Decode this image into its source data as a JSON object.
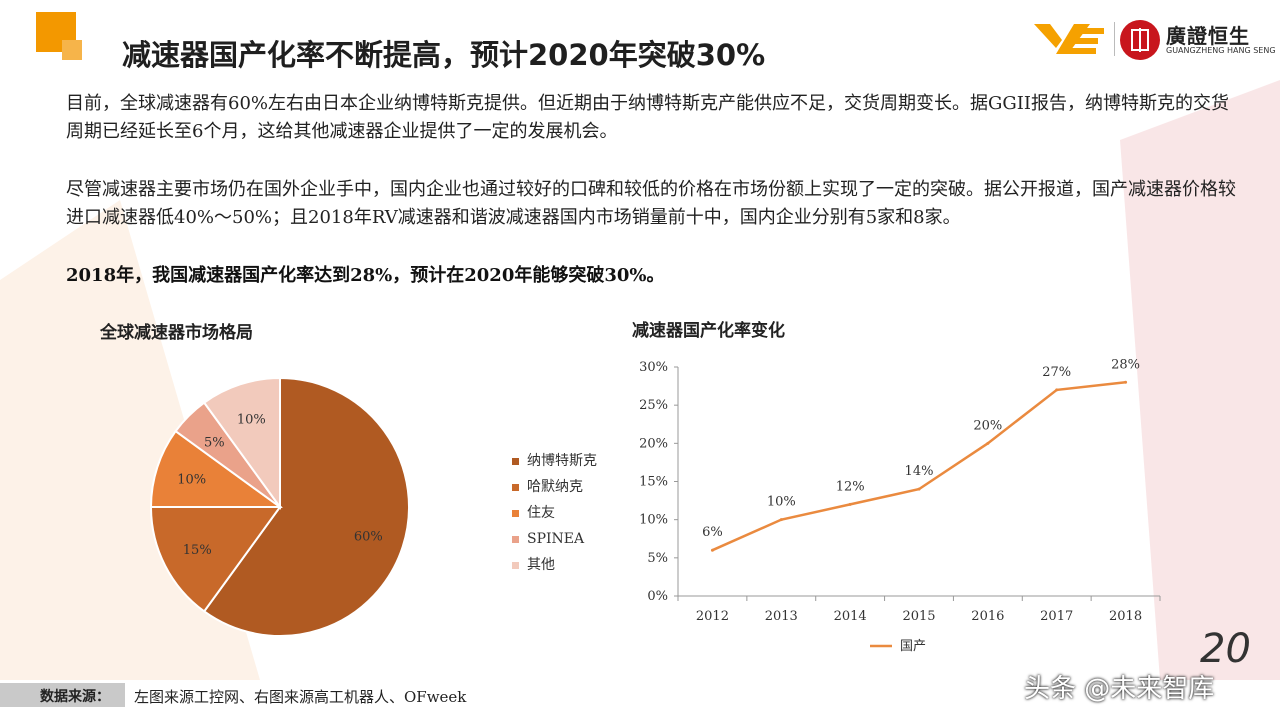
{
  "header": {
    "title": "减速器国产化率不断提高，预计2020年突破30%",
    "brand_cn": "廣證恒生",
    "brand_en": "GUANGZHENG HANG SENG"
  },
  "body": {
    "para1": "目前，全球减速器有60%左右由日本企业纳博特斯克提供。但近期由于纳博特斯克产能供应不足，交货周期变长。据GGII报告，纳博特斯克的交货周期已经延长至6个月，这给其他减速器企业提供了一定的发展机会。",
    "para2": "尽管减速器主要市场仍在国外企业手中，国内企业也通过较好的口碑和较低的价格在市场份额上实现了一定的突破。据公开报道，国产减速器价格较进口减速器低40%～50%；且2018年RV减速器和谐波减速器国内市场销量前十中，国内企业分别有5家和8家。",
    "para3": "2018年，我国减速器国产化率达到28%，预计在2020年能够突破30%。"
  },
  "chart_data": [
    {
      "type": "pie",
      "title": "全球减速器市场格局",
      "slices": [
        {
          "name": "纳博特斯克",
          "value": 60,
          "label": "60%",
          "color": "#b05a22"
        },
        {
          "name": "哈默纳克",
          "value": 15,
          "label": "15%",
          "color": "#c8692a"
        },
        {
          "name": "住友",
          "value": 10,
          "label": "10%",
          "color": "#e98138"
        },
        {
          "name": "SPINEA",
          "value": 5,
          "label": "5%",
          "color": "#eaa28a"
        },
        {
          "name": "其他",
          "value": 10,
          "label": "10%",
          "color": "#f2cabc"
        }
      ],
      "legend_position": "right"
    },
    {
      "type": "line",
      "title": "减速器国产化率变化",
      "x": [
        "2012",
        "2013",
        "2014",
        "2015",
        "2016",
        "2017",
        "2018"
      ],
      "series": [
        {
          "name": "国产",
          "values": [
            6,
            10,
            12,
            14,
            20,
            27,
            28
          ],
          "labels": [
            "6%",
            "10%",
            "12%",
            "14%",
            "20%",
            "27%",
            "28%"
          ],
          "color": "#ea8a3f"
        }
      ],
      "y_ticks": [
        "0%",
        "5%",
        "10%",
        "15%",
        "20%",
        "25%",
        "30%"
      ],
      "ylim": [
        0,
        30
      ],
      "grid": false,
      "legend_position": "bottom"
    }
  ],
  "footer": {
    "source_label": "数据来源：",
    "source_text": "左图来源工控网、右图来源高工机器人、OFweek",
    "page_number": "20",
    "watermark": "头条 @未来智库"
  }
}
